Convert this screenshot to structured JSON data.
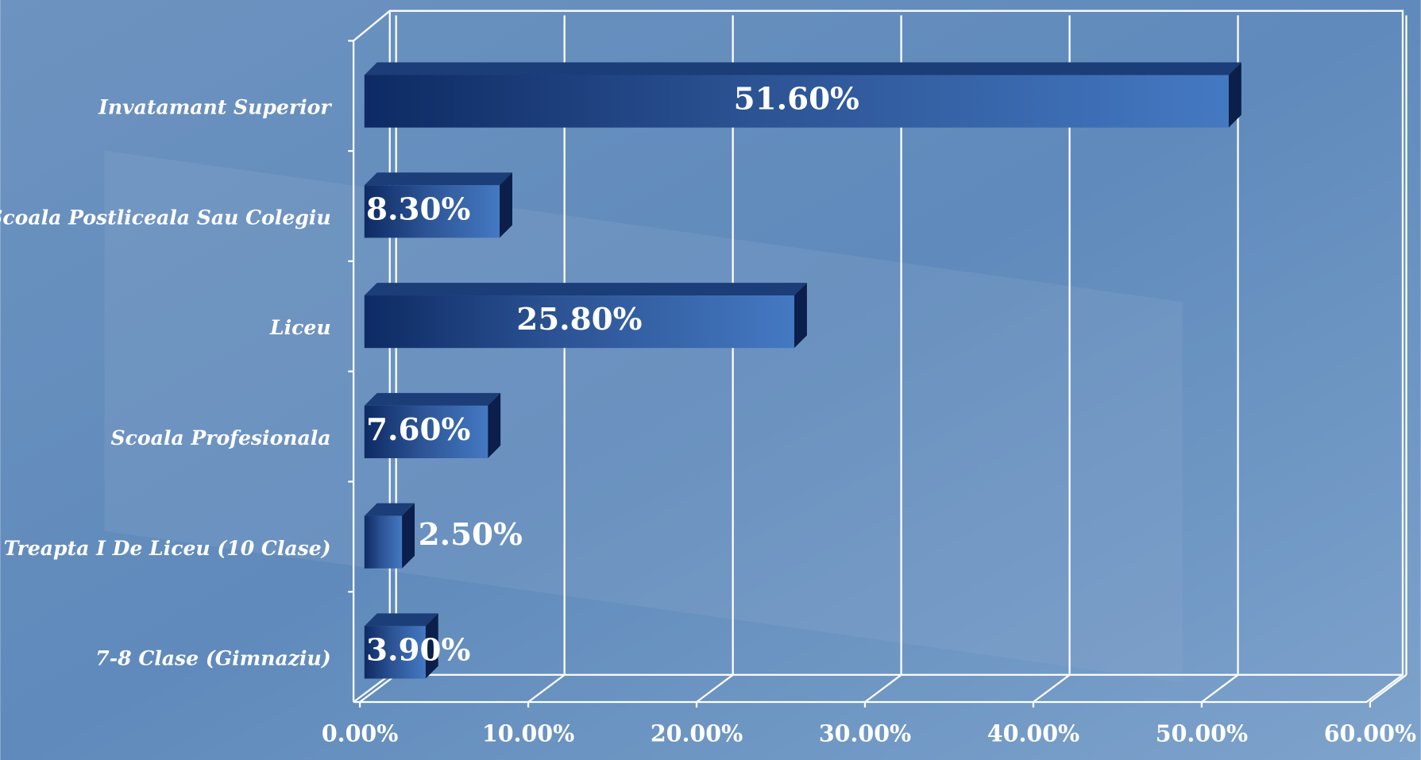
{
  "chart_data": {
    "type": "bar",
    "orientation": "horizontal",
    "categories": [
      "Invatamant Superior",
      "Scoala Postliceala Sau Colegiu",
      "Liceu",
      "Scoala Profesionala",
      "Treapta I De Liceu (10 Clase)",
      "7-8 Clase (Gimnaziu)"
    ],
    "values": [
      51.6,
      8.3,
      25.8,
      7.6,
      2.5,
      3.9
    ],
    "value_labels": [
      "51.60%",
      "8.30%",
      "25.80%",
      "7.60%",
      "2.50%",
      "3.90%"
    ],
    "color": "#2f5fa6",
    "xlim": [
      0,
      60
    ],
    "xticks": [
      {
        "value": 0,
        "label": "0.00%"
      },
      {
        "value": 10,
        "label": "10.00%"
      },
      {
        "value": 20,
        "label": "20.00%"
      },
      {
        "value": 30,
        "label": "30.00%"
      },
      {
        "value": 40,
        "label": "40.00%"
      },
      {
        "value": 50,
        "label": "50.00%"
      },
      {
        "value": 60,
        "label": "60.00%"
      }
    ],
    "grid": true
  }
}
